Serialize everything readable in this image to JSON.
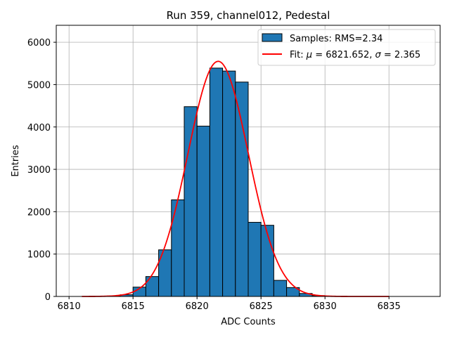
{
  "chart_data": {
    "type": "histogram",
    "title": "Run 359, channel012, Pedestal",
    "xlabel": "ADC Counts",
    "ylabel": "Entries",
    "xlim": [
      6809,
      6839
    ],
    "ylim": [
      0,
      6400
    ],
    "xticks": [
      6810,
      6815,
      6820,
      6825,
      6830,
      6835
    ],
    "yticks": [
      0,
      1000,
      2000,
      3000,
      4000,
      5000,
      6000
    ],
    "grid": true,
    "legend_position": "top-right",
    "bin_edges": [
      6812,
      6813,
      6814,
      6815,
      6816,
      6817,
      6818,
      6819,
      6820,
      6821,
      6822,
      6823,
      6824,
      6825,
      6826,
      6827,
      6828,
      6829,
      6830,
      6831,
      6832,
      6833,
      6834,
      6835
    ],
    "counts": [
      5,
      10,
      40,
      220,
      470,
      1100,
      2280,
      4480,
      4020,
      5390,
      5320,
      5060,
      1750,
      1680,
      380,
      210,
      70,
      20,
      5,
      0,
      0,
      0,
      0
    ],
    "series": [
      {
        "name": "Samples: RMS=2.34",
        "kind": "histogram",
        "color": "#1f77b4",
        "edgecolor": "#000000"
      },
      {
        "name": "Fit: μ = 6821.652, σ = 2.365",
        "kind": "gaussian-fit",
        "color": "#ff0000",
        "mu": 6821.652,
        "sigma": 2.365,
        "amplitude": 5550,
        "x_range": [
          6811,
          6835
        ]
      }
    ],
    "legend": {
      "samples_label": "Samples: RMS=2.34",
      "fit_label_prefix": "Fit: ",
      "mu_symbol": "μ",
      "mu_text": " = 6821.652, ",
      "sigma_symbol": "σ",
      "sigma_text": " = 2.365"
    }
  }
}
